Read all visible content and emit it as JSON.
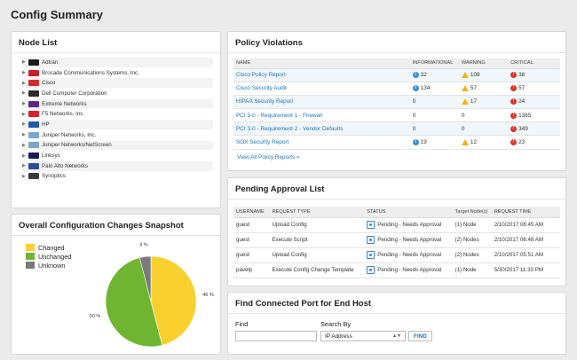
{
  "page": {
    "title": "Config Summary"
  },
  "node_list": {
    "title": "Node List",
    "items": [
      {
        "label": "Adtran",
        "logo_color": "#1b1b1b"
      },
      {
        "label": "Brocade Communications Systems, Inc.",
        "logo_color": "#c8202b"
      },
      {
        "label": "Cisco",
        "logo_color": "#d22b2b"
      },
      {
        "label": "Dell Computer Corporation",
        "logo_color": "#2b2b2b"
      },
      {
        "label": "Extreme Networks",
        "logo_color": "#5a2a82"
      },
      {
        "label": "F5 Networks, Inc.",
        "logo_color": "#d9202b"
      },
      {
        "label": "HP",
        "logo_color": "#1f5ca8"
      },
      {
        "label": "Juniper Networks, Inc.",
        "logo_color": "#7aa7c7"
      },
      {
        "label": "Juniper Networks/NetScreen",
        "logo_color": "#7aa7c7"
      },
      {
        "label": "Linksys",
        "logo_color": "#1b1b5a"
      },
      {
        "label": "Palo Alto Networks",
        "logo_color": "#2b4f8f"
      },
      {
        "label": "Synoptics",
        "logo_color": "#3a3a3a"
      }
    ]
  },
  "changes": {
    "title": "Overall Configuration Changes Snapshot",
    "legend": [
      "Changed",
      "Unchanged",
      "Unknown"
    ]
  },
  "chart_data": {
    "type": "pie",
    "title": "Overall Configuration Changes Snapshot",
    "categories": [
      "Changed",
      "Unchanged",
      "Unknown"
    ],
    "values": [
      46,
      50,
      4
    ],
    "labels": [
      "46 %",
      "50 %",
      "4 %"
    ],
    "colors": [
      "#f9d02e",
      "#6fb530",
      "#7a7a7a"
    ],
    "legend": "top-left"
  },
  "violations": {
    "title": "Policy Violations",
    "columns": [
      "NAME",
      "INFORMATIONAL",
      "WARNING",
      "CRITICAL"
    ],
    "rows": [
      {
        "name": "Cisco Policy Report",
        "info": "32",
        "warn": "108",
        "crit": "38",
        "info_icon": true,
        "warn_icon": true,
        "crit_icon": true
      },
      {
        "name": "Cisco Security Audit",
        "info": "134",
        "warn": "57",
        "crit": "57",
        "info_icon": true,
        "warn_icon": true,
        "crit_icon": true
      },
      {
        "name": "HIPAA Security Report",
        "info": "0",
        "warn": "17",
        "crit": "24",
        "info_icon": false,
        "warn_icon": true,
        "crit_icon": true
      },
      {
        "name": "PCI 3-0 - Requirement 1 - Firewall",
        "info": "0",
        "warn": "0",
        "crit": "1365",
        "info_icon": false,
        "warn_icon": false,
        "crit_icon": true
      },
      {
        "name": "PCI 3-0 - Requirement 2 - Vendor Defaults",
        "info": "0",
        "warn": "0",
        "crit": "349",
        "info_icon": false,
        "warn_icon": false,
        "crit_icon": true
      },
      {
        "name": "SOX Security Report",
        "info": "19",
        "warn": "12",
        "crit": "23",
        "info_icon": true,
        "warn_icon": true,
        "crit_icon": true
      }
    ],
    "view_all": "View All Policy Reports »"
  },
  "pending": {
    "title": "Pending Approval List",
    "columns": [
      "USERNAME",
      "REQUEST TYPE",
      "STATUS",
      "Target Node(s)",
      "REQUEST TIME"
    ],
    "rows": [
      {
        "user": "guest",
        "type": "Upload Config",
        "status": "Pending - Needs Approval",
        "nodes": "(1) Node",
        "time": "2/10/2017 06:45 AM"
      },
      {
        "user": "guest",
        "type": "Execute Script",
        "status": "Pending - Needs Approval",
        "nodes": "(2) Nodes",
        "time": "2/10/2017 06:48 AM"
      },
      {
        "user": "guest",
        "type": "Upload Config",
        "status": "Pending - Needs Approval",
        "nodes": "(2) Nodes",
        "time": "2/10/2017 05:51 AM"
      },
      {
        "user": "pavelp",
        "type": "Execute Config Change Template",
        "status": "Pending - Needs Approval",
        "nodes": "(1) Node",
        "time": "5/30/2017 11:33 PM"
      }
    ]
  },
  "find_port": {
    "title": "Find Connected Port for End Host",
    "find_label": "Find",
    "find_value": "",
    "search_by_label": "Search By",
    "search_by_value": "IP Address",
    "button": "FIND"
  }
}
